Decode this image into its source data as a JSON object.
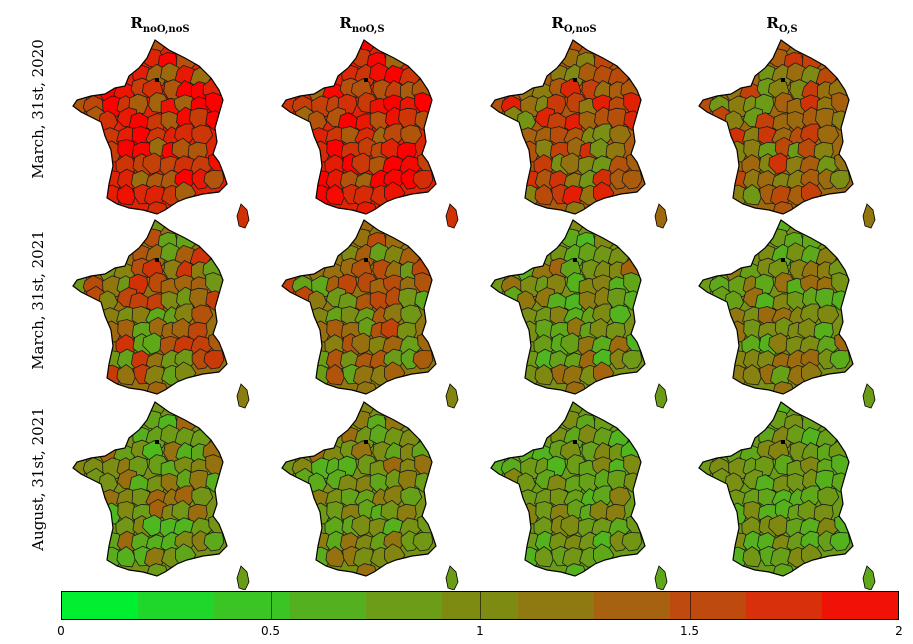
{
  "columns": [
    {
      "base": "R",
      "sub": "noO,noS"
    },
    {
      "base": "R",
      "sub": "noO,S"
    },
    {
      "base": "R",
      "sub": "O,noS"
    },
    {
      "base": "R",
      "sub": "O,S"
    }
  ],
  "rows": [
    {
      "label": "March, 31st, 2020"
    },
    {
      "label": "March, 31st, 2021"
    },
    {
      "label": "August, 31st, 2021"
    }
  ],
  "map_mean_values": [
    [
      1.75,
      1.75,
      1.35,
      1.25
    ],
    [
      1.2,
      1.15,
      0.95,
      0.95
    ],
    [
      0.95,
      0.95,
      0.85,
      0.85
    ]
  ],
  "colorbar": {
    "min": 0,
    "max": 2,
    "ticks": [
      "0",
      "0.5",
      "1",
      "1.5",
      "2"
    ],
    "tick_values": [
      0,
      0.5,
      1,
      1.5,
      2
    ],
    "segments": 11,
    "colors": [
      "#00f031",
      "#1fd72b",
      "#3bc525",
      "#55b01f",
      "#6b9d18",
      "#7e8b12",
      "#8f7a12",
      "#a66211",
      "#bf4a0e",
      "#d8300b",
      "#f01207"
    ],
    "low_color": "#00ff33",
    "mid_color": "#7e8b12",
    "high_color": "#ff0000"
  }
}
